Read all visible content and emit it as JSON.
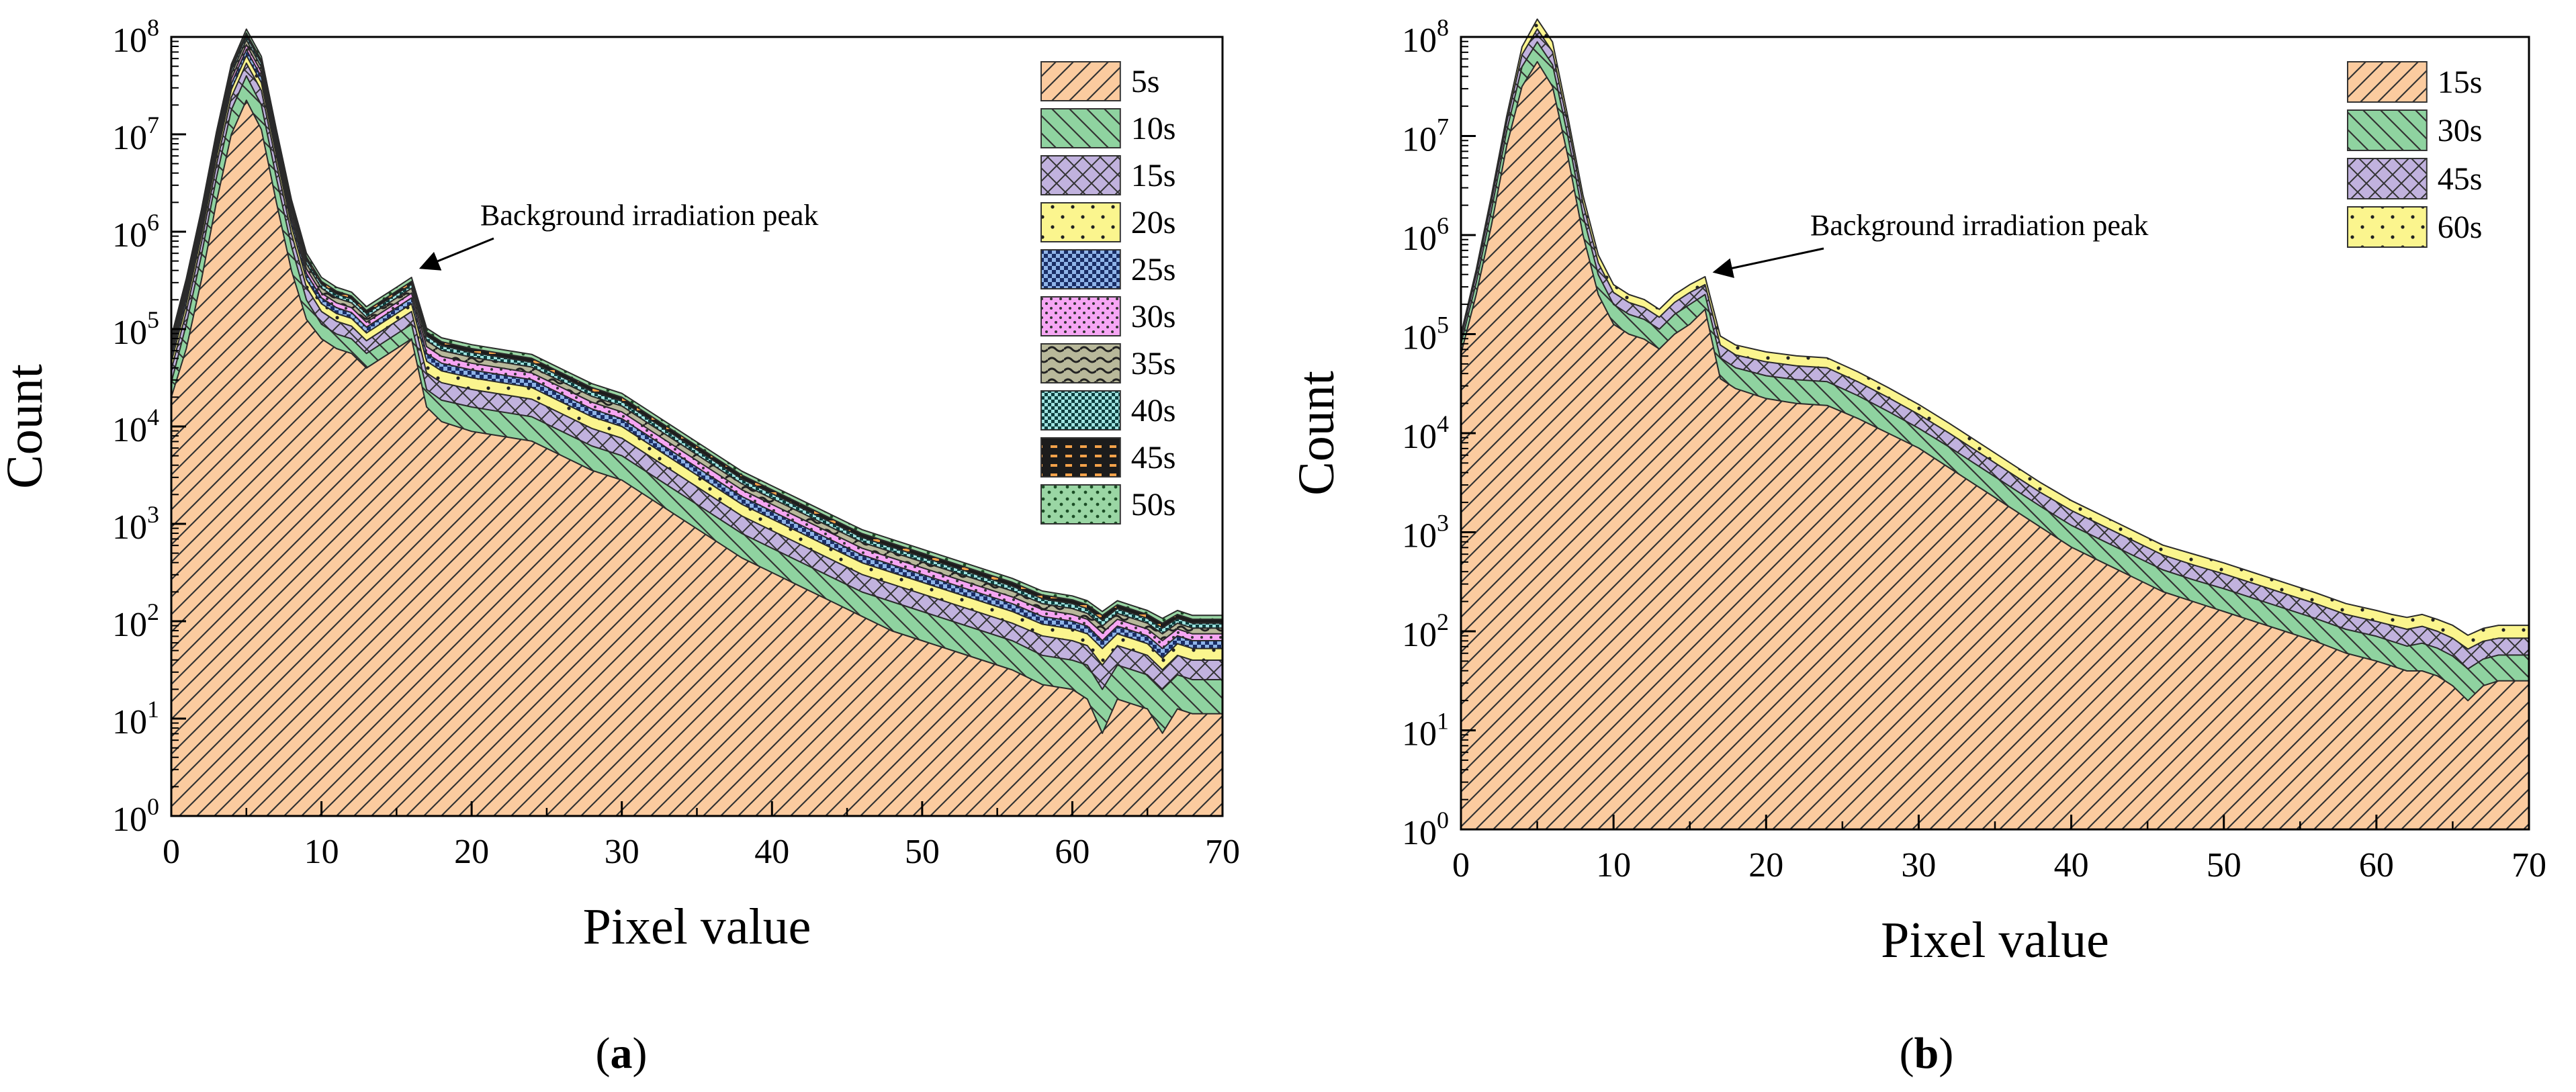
{
  "panel_labels": {
    "a": "(a)",
    "b": "(b)"
  },
  "chart_data": [
    {
      "type": "area",
      "panel": "(a)",
      "xlabel": "Pixel value",
      "ylabel": "Count",
      "xlim": [
        0,
        70
      ],
      "ylim_exponent": [
        0,
        8
      ],
      "xticks": [
        "0",
        "10",
        "20",
        "30",
        "40",
        "50",
        "60",
        "70"
      ],
      "ytick_base": "10",
      "yticks_exp": [
        "0",
        "1",
        "2",
        "3",
        "4",
        "5",
        "6",
        "7",
        "8"
      ],
      "legend_position": "top-right",
      "annotation": {
        "text": "Background irradiation peak",
        "target_x": 16,
        "target_y_exp": 5.6
      },
      "x": [
        0,
        1,
        2,
        3,
        4,
        5,
        6,
        7,
        8,
        9,
        10,
        11,
        12,
        13,
        14,
        15,
        16,
        17,
        18,
        20,
        22,
        24,
        26,
        28,
        30,
        32,
        34,
        36,
        38,
        40,
        42,
        44,
        46,
        48,
        50,
        52,
        54,
        56,
        58,
        60,
        61,
        62,
        63,
        64,
        65,
        66,
        67,
        68,
        70
      ],
      "series": [
        {
          "name": "5s",
          "color": "#fbcb9f",
          "pattern": "diag",
          "log_values": [
            4.3,
            4.8,
            5.5,
            6.3,
            7.0,
            7.35,
            7.05,
            6.3,
            5.6,
            5.1,
            4.9,
            4.8,
            4.75,
            4.6,
            4.7,
            4.8,
            4.9,
            4.2,
            4.05,
            3.95,
            3.9,
            3.85,
            3.7,
            3.55,
            3.45,
            3.25,
            3.05,
            2.85,
            2.65,
            2.5,
            2.35,
            2.2,
            2.05,
            1.9,
            1.8,
            1.7,
            1.6,
            1.5,
            1.35,
            1.3,
            1.2,
            0.85,
            1.2,
            1.15,
            1.1,
            0.85,
            1.1,
            1.05,
            1.05
          ]
        },
        {
          "name": "10s",
          "color": "#8fd3a0",
          "pattern": "back",
          "log_values": [
            4.45,
            5.05,
            5.75,
            6.55,
            7.25,
            7.6,
            7.3,
            6.55,
            5.85,
            5.3,
            5.05,
            4.95,
            4.9,
            4.75,
            4.85,
            4.95,
            5.05,
            4.38,
            4.27,
            4.2,
            4.15,
            4.1,
            3.95,
            3.8,
            3.7,
            3.5,
            3.3,
            3.1,
            2.9,
            2.75,
            2.6,
            2.45,
            2.3,
            2.2,
            2.1,
            2.0,
            1.9,
            1.8,
            1.65,
            1.6,
            1.55,
            1.3,
            1.55,
            1.5,
            1.45,
            1.3,
            1.45,
            1.4,
            1.4
          ]
        },
        {
          "name": "15s",
          "color": "#c1b2de",
          "pattern": "cross",
          "log_values": [
            4.58,
            5.18,
            5.88,
            6.68,
            7.38,
            7.73,
            7.45,
            6.7,
            5.98,
            5.43,
            5.18,
            5.08,
            5.03,
            4.88,
            4.98,
            5.08,
            5.18,
            4.55,
            4.45,
            4.38,
            4.33,
            4.28,
            4.13,
            3.98,
            3.88,
            3.68,
            3.48,
            3.28,
            3.08,
            2.93,
            2.78,
            2.63,
            2.48,
            2.38,
            2.28,
            2.18,
            2.08,
            1.98,
            1.85,
            1.8,
            1.75,
            1.55,
            1.75,
            1.7,
            1.65,
            1.5,
            1.65,
            1.6,
            1.6
          ]
        },
        {
          "name": "20s",
          "color": "#fbf58e",
          "pattern": "dots",
          "log_values": [
            4.66,
            5.26,
            5.96,
            6.76,
            7.46,
            7.81,
            7.53,
            6.78,
            6.06,
            5.51,
            5.26,
            5.16,
            5.11,
            4.96,
            5.06,
            5.16,
            5.26,
            4.67,
            4.57,
            4.5,
            4.45,
            4.4,
            4.25,
            4.1,
            4.0,
            3.8,
            3.6,
            3.4,
            3.2,
            3.05,
            2.9,
            2.75,
            2.6,
            2.5,
            2.4,
            2.3,
            2.2,
            2.1,
            1.97,
            1.92,
            1.87,
            1.72,
            1.87,
            1.82,
            1.77,
            1.62,
            1.77,
            1.72,
            1.72
          ]
        },
        {
          "name": "25s",
          "color": "#8fb4e8",
          "pattern": "checker",
          "log_values": [
            4.72,
            5.32,
            6.02,
            6.82,
            7.52,
            7.87,
            7.59,
            6.84,
            6.12,
            5.57,
            5.32,
            5.22,
            5.17,
            5.02,
            5.12,
            5.22,
            5.32,
            4.75,
            4.65,
            4.58,
            4.53,
            4.48,
            4.33,
            4.18,
            4.08,
            3.88,
            3.68,
            3.48,
            3.28,
            3.13,
            2.98,
            2.83,
            2.68,
            2.58,
            2.48,
            2.38,
            2.28,
            2.18,
            2.05,
            2.0,
            1.95,
            1.8,
            1.95,
            1.9,
            1.85,
            1.72,
            1.85,
            1.8,
            1.8
          ]
        },
        {
          "name": "30s",
          "color": "#f6a6f4",
          "pattern": "dense",
          "log_values": [
            4.77,
            5.37,
            6.07,
            6.87,
            7.57,
            7.92,
            7.64,
            6.89,
            6.17,
            5.62,
            5.37,
            5.27,
            5.22,
            5.07,
            5.17,
            5.27,
            5.37,
            4.82,
            4.72,
            4.65,
            4.6,
            4.55,
            4.4,
            4.25,
            4.15,
            3.95,
            3.75,
            3.55,
            3.35,
            3.2,
            3.05,
            2.9,
            2.75,
            2.65,
            2.55,
            2.45,
            2.35,
            2.25,
            2.12,
            2.07,
            2.02,
            1.88,
            2.02,
            1.97,
            1.92,
            1.8,
            1.92,
            1.87,
            1.87
          ]
        },
        {
          "name": "35s",
          "color": "#b8b89a",
          "pattern": "wave",
          "log_values": [
            4.82,
            5.42,
            6.12,
            6.92,
            7.62,
            7.97,
            7.69,
            6.94,
            6.22,
            5.67,
            5.42,
            5.32,
            5.27,
            5.12,
            5.22,
            5.32,
            5.42,
            4.88,
            4.78,
            4.71,
            4.66,
            4.61,
            4.46,
            4.31,
            4.21,
            4.01,
            3.81,
            3.61,
            3.41,
            3.26,
            3.11,
            2.96,
            2.81,
            2.71,
            2.61,
            2.51,
            2.41,
            2.31,
            2.18,
            2.13,
            2.08,
            1.95,
            2.08,
            2.03,
            1.98,
            1.87,
            1.98,
            1.93,
            1.93
          ]
        },
        {
          "name": "40s",
          "color": "#9fe3e0",
          "pattern": "grid",
          "log_values": [
            4.86,
            5.46,
            6.16,
            6.96,
            7.66,
            8.01,
            7.73,
            6.98,
            6.26,
            5.71,
            5.46,
            5.36,
            5.31,
            5.16,
            5.26,
            5.36,
            5.46,
            4.93,
            4.83,
            4.76,
            4.71,
            4.66,
            4.51,
            4.36,
            4.26,
            4.06,
            3.86,
            3.66,
            3.46,
            3.31,
            3.16,
            3.01,
            2.86,
            2.76,
            2.66,
            2.56,
            2.46,
            2.36,
            2.23,
            2.18,
            2.13,
            2.01,
            2.13,
            2.08,
            2.03,
            1.93,
            2.03,
            1.98,
            1.98
          ]
        },
        {
          "name": "45s",
          "color": "#1c1c1c",
          "pattern": "dashes",
          "log_values": [
            4.89,
            5.49,
            6.19,
            6.99,
            7.69,
            8.04,
            7.76,
            7.01,
            6.29,
            5.74,
            5.49,
            5.39,
            5.34,
            5.19,
            5.29,
            5.39,
            5.49,
            4.97,
            4.87,
            4.8,
            4.75,
            4.7,
            4.55,
            4.4,
            4.3,
            4.1,
            3.9,
            3.7,
            3.5,
            3.35,
            3.2,
            3.05,
            2.9,
            2.8,
            2.7,
            2.6,
            2.5,
            2.4,
            2.27,
            2.22,
            2.17,
            2.06,
            2.17,
            2.12,
            2.07,
            1.98,
            2.07,
            2.02,
            2.02
          ]
        },
        {
          "name": "50s",
          "color": "#9ad6a4",
          "pattern": "sparse",
          "log_values": [
            4.92,
            5.52,
            6.22,
            7.02,
            7.72,
            8.08,
            7.8,
            7.05,
            6.33,
            5.78,
            5.53,
            5.43,
            5.38,
            5.23,
            5.33,
            5.43,
            5.53,
            5.01,
            4.91,
            4.84,
            4.79,
            4.74,
            4.59,
            4.44,
            4.34,
            4.14,
            3.94,
            3.74,
            3.54,
            3.39,
            3.24,
            3.09,
            2.94,
            2.84,
            2.74,
            2.64,
            2.54,
            2.44,
            2.31,
            2.26,
            2.21,
            2.1,
            2.21,
            2.16,
            2.11,
            2.03,
            2.11,
            2.06,
            2.06
          ]
        }
      ]
    },
    {
      "type": "area",
      "panel": "(b)",
      "xlabel": "Pixel value",
      "ylabel": "Count",
      "xlim": [
        0,
        70
      ],
      "ylim_exponent": [
        0,
        8
      ],
      "xticks": [
        "0",
        "10",
        "20",
        "30",
        "40",
        "50",
        "60",
        "70"
      ],
      "ytick_base": "10",
      "yticks_exp": [
        "0",
        "1",
        "2",
        "3",
        "4",
        "5",
        "6",
        "7",
        "8"
      ],
      "legend_position": "top-right",
      "annotation": {
        "text": "Background irradiation peak",
        "target_x": 16,
        "target_y_exp": 5.6
      },
      "x": [
        0,
        1,
        2,
        3,
        4,
        5,
        6,
        7,
        8,
        9,
        10,
        11,
        12,
        13,
        14,
        15,
        16,
        17,
        18,
        20,
        22,
        24,
        26,
        28,
        30,
        32,
        34,
        36,
        38,
        40,
        42,
        44,
        46,
        48,
        50,
        52,
        54,
        56,
        58,
        60,
        61,
        62,
        63,
        64,
        65,
        66,
        67,
        68,
        70
      ],
      "series": [
        {
          "name": "15s",
          "color": "#fbcb9f",
          "pattern": "diag",
          "log_values": [
            4.8,
            5.4,
            6.1,
            6.9,
            7.5,
            7.75,
            7.5,
            6.8,
            6.0,
            5.4,
            5.1,
            5.0,
            4.95,
            4.85,
            5.0,
            5.1,
            5.25,
            4.55,
            4.45,
            4.35,
            4.3,
            4.28,
            4.15,
            4.0,
            3.85,
            3.65,
            3.45,
            3.25,
            3.05,
            2.85,
            2.7,
            2.55,
            2.4,
            2.3,
            2.2,
            2.1,
            2.0,
            1.9,
            1.78,
            1.7,
            1.65,
            1.6,
            1.6,
            1.55,
            1.45,
            1.3,
            1.45,
            1.5,
            1.5
          ]
        },
        {
          "name": "30s",
          "color": "#8fd3a0",
          "pattern": "back",
          "log_values": [
            4.9,
            5.52,
            6.25,
            7.05,
            7.7,
            7.95,
            7.72,
            7.0,
            6.2,
            5.6,
            5.3,
            5.2,
            5.15,
            5.05,
            5.2,
            5.3,
            5.4,
            4.76,
            4.66,
            4.58,
            4.54,
            4.52,
            4.38,
            4.22,
            4.05,
            3.86,
            3.66,
            3.46,
            3.26,
            3.07,
            2.92,
            2.77,
            2.62,
            2.52,
            2.43,
            2.33,
            2.23,
            2.13,
            2.02,
            1.95,
            1.9,
            1.85,
            1.88,
            1.83,
            1.75,
            1.62,
            1.72,
            1.76,
            1.76
          ]
        },
        {
          "name": "45s",
          "color": "#c1b2de",
          "pattern": "cross",
          "log_values": [
            4.96,
            5.6,
            6.34,
            7.14,
            7.82,
            8.08,
            7.85,
            7.12,
            6.32,
            5.72,
            5.42,
            5.32,
            5.27,
            5.17,
            5.32,
            5.42,
            5.5,
            4.89,
            4.79,
            4.72,
            4.68,
            4.66,
            4.52,
            4.36,
            4.19,
            4.0,
            3.8,
            3.6,
            3.4,
            3.22,
            3.07,
            2.92,
            2.77,
            2.67,
            2.58,
            2.48,
            2.38,
            2.28,
            2.17,
            2.1,
            2.06,
            2.02,
            2.05,
            2.0,
            1.93,
            1.82,
            1.9,
            1.93,
            1.93
          ]
        },
        {
          "name": "60s",
          "color": "#fbf58e",
          "pattern": "dots",
          "log_values": [
            5.0,
            5.65,
            6.4,
            7.2,
            7.9,
            8.18,
            7.95,
            7.2,
            6.4,
            5.8,
            5.5,
            5.4,
            5.35,
            5.25,
            5.4,
            5.5,
            5.58,
            4.98,
            4.89,
            4.82,
            4.78,
            4.76,
            4.62,
            4.46,
            4.29,
            4.1,
            3.9,
            3.7,
            3.5,
            3.32,
            3.17,
            3.02,
            2.87,
            2.78,
            2.69,
            2.59,
            2.49,
            2.39,
            2.28,
            2.21,
            2.17,
            2.14,
            2.17,
            2.12,
            2.06,
            1.96,
            2.03,
            2.06,
            2.06
          ]
        }
      ]
    }
  ]
}
